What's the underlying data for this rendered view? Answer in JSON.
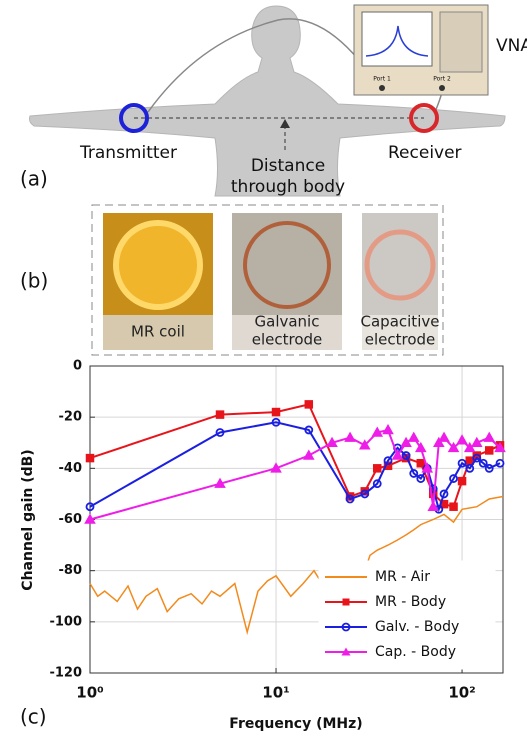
{
  "figure": {
    "vna": "VNA",
    "port1": "Port 1",
    "port2": "Port 2",
    "transmitter": "Transmitter",
    "receiver": "Receiver",
    "distance": [
      "Distance",
      "through body"
    ],
    "panel_a": "(a)",
    "panel_b": "(b)",
    "panel_c": "(c)",
    "photos": [
      [
        "MR coil"
      ],
      [
        "Galvanic",
        "electrode"
      ],
      [
        "Capacitive",
        "electrode"
      ]
    ]
  },
  "chart_data": {
    "type": "line",
    "xlabel": "Frequency (MHz)",
    "ylabel": "Channel gain (dB)",
    "xscale": "log",
    "xlim": [
      1,
      166
    ],
    "ylim": [
      -120,
      0
    ],
    "xticks": [
      {
        "value": 1,
        "label": "10⁰"
      },
      {
        "value": 10,
        "label": "10¹"
      },
      {
        "value": 100,
        "label": "10²"
      }
    ],
    "yticks": [
      0,
      -20,
      -40,
      -60,
      -80,
      -100,
      -120
    ],
    "grid": true,
    "legend": "lower right",
    "series": [
      {
        "name": "MR - Air",
        "color": "#f28a1c",
        "marker": "none",
        "x": [
          1,
          1.1,
          1.2,
          1.4,
          1.6,
          1.8,
          2,
          2.3,
          2.6,
          3,
          3.5,
          4,
          4.5,
          5,
          6,
          7,
          8,
          9,
          10,
          12,
          14,
          16,
          18,
          20,
          23,
          26,
          30,
          32,
          35,
          40,
          45,
          50,
          55,
          60,
          70,
          80,
          90,
          100,
          120,
          140,
          166
        ],
        "values": [
          -85,
          -90,
          -88,
          -92,
          -86,
          -95,
          -90,
          -87,
          -96,
          -91,
          -89,
          -93,
          -88,
          -90,
          -85,
          -104,
          -88,
          -84,
          -82,
          -90,
          -85,
          -80,
          -86,
          -78,
          -82,
          -79,
          -80,
          -74,
          -72,
          -70,
          -68,
          -66,
          -64,
          -62,
          -60,
          -58,
          -61,
          -56,
          -55,
          -52,
          -51
        ]
      },
      {
        "name": "MR - Body",
        "color": "#e8141c",
        "marker": "square",
        "x": [
          1,
          5,
          10,
          15,
          25,
          30,
          35,
          40,
          50,
          60,
          70,
          80,
          90,
          100,
          110,
          120,
          140,
          160
        ],
        "values": [
          -36,
          -19,
          -18,
          -15,
          -51,
          -49,
          -40,
          -39,
          -36,
          -38,
          -50,
          -54,
          -55,
          -45,
          -37,
          -35,
          -33,
          -31
        ]
      },
      {
        "name": "Galv. - Body",
        "color": "#1b1fe0",
        "marker": "circle",
        "x": [
          1,
          5,
          10,
          15,
          25,
          30,
          35,
          40,
          45,
          50,
          55,
          60,
          65,
          70,
          75,
          80,
          90,
          100,
          110,
          120,
          130,
          140,
          160
        ],
        "values": [
          -55,
          -26,
          -22,
          -25,
          -52,
          -50,
          -46,
          -37,
          -32,
          -35,
          -42,
          -44,
          -40,
          -48,
          -56,
          -50,
          -44,
          -38,
          -40,
          -36,
          -38,
          -40,
          -38
        ]
      },
      {
        "name": "Cap. - Body",
        "color": "#ee1ee8",
        "marker": "triangle",
        "x": [
          1,
          5,
          10,
          15,
          20,
          25,
          30,
          35,
          40,
          45,
          50,
          55,
          60,
          65,
          70,
          75,
          80,
          90,
          100,
          110,
          120,
          140,
          160
        ],
        "values": [
          -60,
          -46,
          -40,
          -35,
          -30,
          -28,
          -31,
          -26,
          -25,
          -35,
          -30,
          -28,
          -32,
          -40,
          -55,
          -30,
          -28,
          -32,
          -29,
          -32,
          -30,
          -28,
          -32
        ]
      }
    ]
  }
}
